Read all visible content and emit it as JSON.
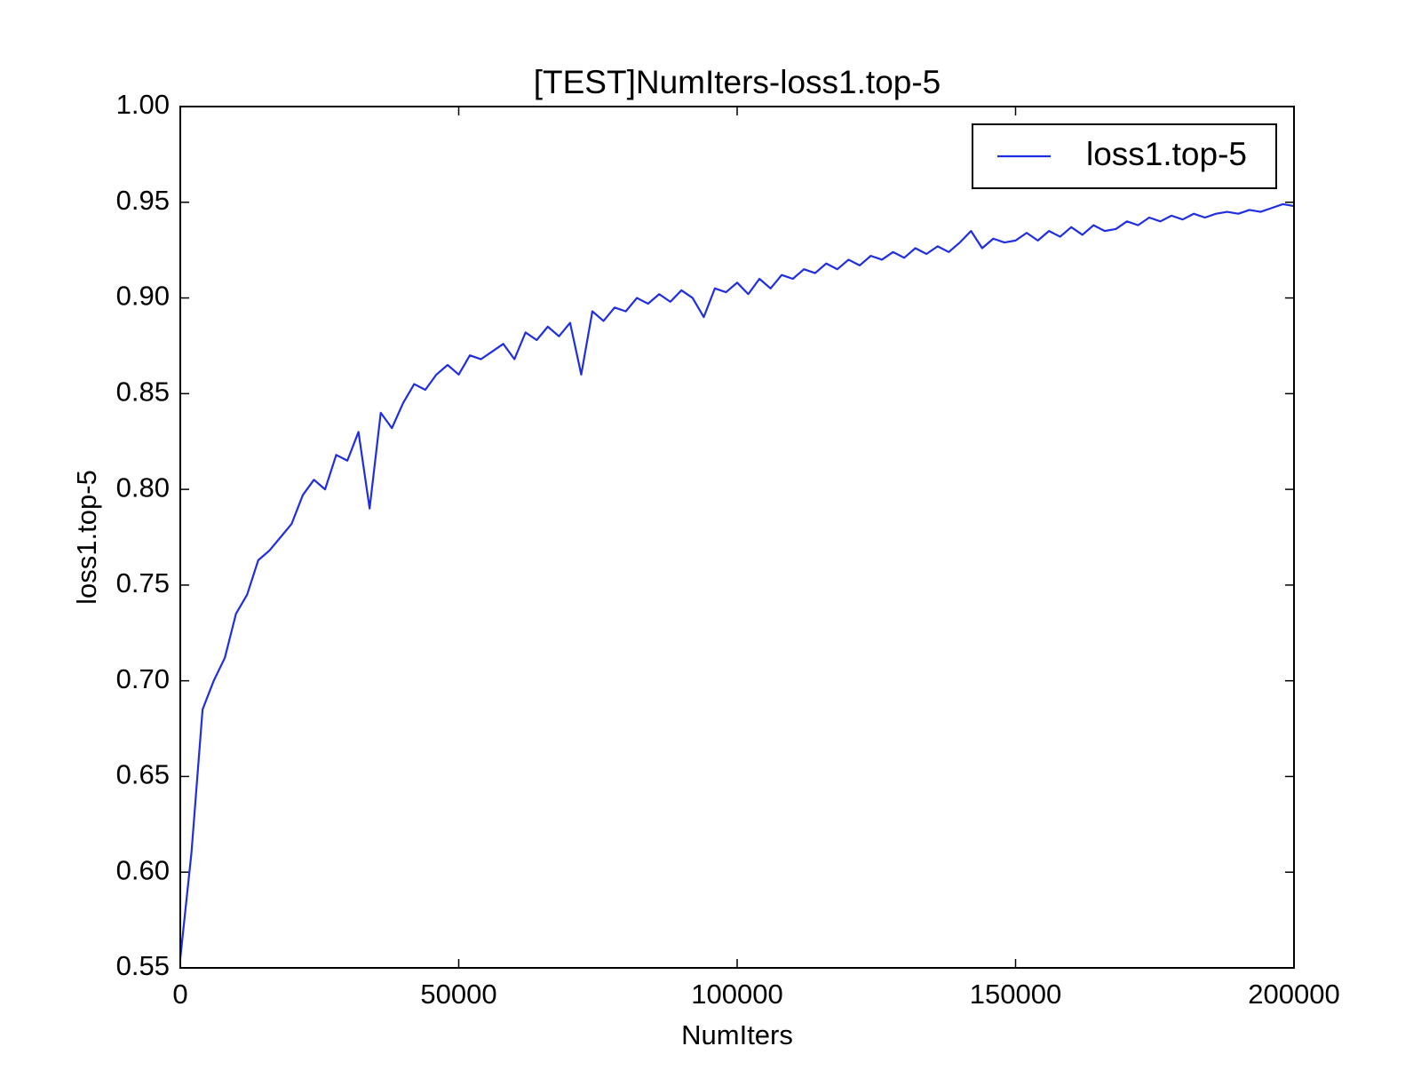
{
  "chart_data": {
    "type": "line",
    "title": "[TEST]NumIters-loss1.top-5",
    "x_label": "NumIters",
    "y_label": "loss1.top-5",
    "x": [
      0,
      2000,
      4000,
      6000,
      8000,
      10000,
      12000,
      14000,
      16000,
      18000,
      20000,
      22000,
      24000,
      26000,
      28000,
      30000,
      32000,
      34000,
      36000,
      38000,
      40000,
      42000,
      44000,
      46000,
      48000,
      50000,
      52000,
      54000,
      56000,
      58000,
      60000,
      62000,
      64000,
      66000,
      68000,
      70000,
      72000,
      74000,
      76000,
      78000,
      80000,
      82000,
      84000,
      86000,
      88000,
      90000,
      92000,
      94000,
      96000,
      98000,
      100000,
      102000,
      104000,
      106000,
      108000,
      110000,
      112000,
      114000,
      116000,
      118000,
      120000,
      122000,
      124000,
      126000,
      128000,
      130000,
      132000,
      134000,
      136000,
      138000,
      140000,
      142000,
      144000,
      146000,
      148000,
      150000,
      152000,
      154000,
      156000,
      158000,
      160000,
      162000,
      164000,
      166000,
      168000,
      170000,
      172000,
      174000,
      176000,
      178000,
      180000,
      182000,
      184000,
      186000,
      188000,
      190000,
      192000,
      194000,
      196000,
      198000,
      200000
    ],
    "series": [
      {
        "name": "loss1.top-5",
        "color": "#1f2ee0",
        "values": [
          0.555,
          0.61,
          0.685,
          0.7,
          0.712,
          0.735,
          0.745,
          0.763,
          0.768,
          0.775,
          0.782,
          0.797,
          0.805,
          0.8,
          0.818,
          0.815,
          0.83,
          0.79,
          0.84,
          0.832,
          0.845,
          0.855,
          0.852,
          0.86,
          0.865,
          0.86,
          0.87,
          0.868,
          0.872,
          0.876,
          0.868,
          0.882,
          0.878,
          0.885,
          0.88,
          0.887,
          0.86,
          0.893,
          0.888,
          0.895,
          0.893,
          0.9,
          0.897,
          0.902,
          0.898,
          0.904,
          0.9,
          0.89,
          0.905,
          0.903,
          0.908,
          0.902,
          0.91,
          0.905,
          0.912,
          0.91,
          0.915,
          0.913,
          0.918,
          0.915,
          0.92,
          0.917,
          0.922,
          0.92,
          0.924,
          0.921,
          0.926,
          0.923,
          0.927,
          0.924,
          0.929,
          0.935,
          0.926,
          0.931,
          0.929,
          0.93,
          0.934,
          0.93,
          0.935,
          0.932,
          0.937,
          0.933,
          0.938,
          0.935,
          0.936,
          0.94,
          0.938,
          0.942,
          0.94,
          0.943,
          0.941,
          0.944,
          0.942,
          0.944,
          0.945,
          0.944,
          0.946,
          0.945,
          0.947,
          0.949,
          0.948
        ]
      }
    ],
    "xlim": [
      0,
      200000
    ],
    "xticks": [
      0,
      50000,
      100000,
      150000,
      200000
    ],
    "ylim": [
      0.55,
      1.0
    ],
    "yticks": [
      0.55,
      {
        "value": 0.6,
        "label": "0.60"
      },
      0.65,
      {
        "value": 0.7,
        "label": "0.70"
      },
      0.75,
      {
        "value": 0.8,
        "label": "0.80"
      },
      0.85,
      {
        "value": 0.9,
        "label": "0.90"
      },
      0.95,
      {
        "value": 1.0,
        "label": "1.00"
      }
    ],
    "legend": "upper right",
    "grid": false
  }
}
